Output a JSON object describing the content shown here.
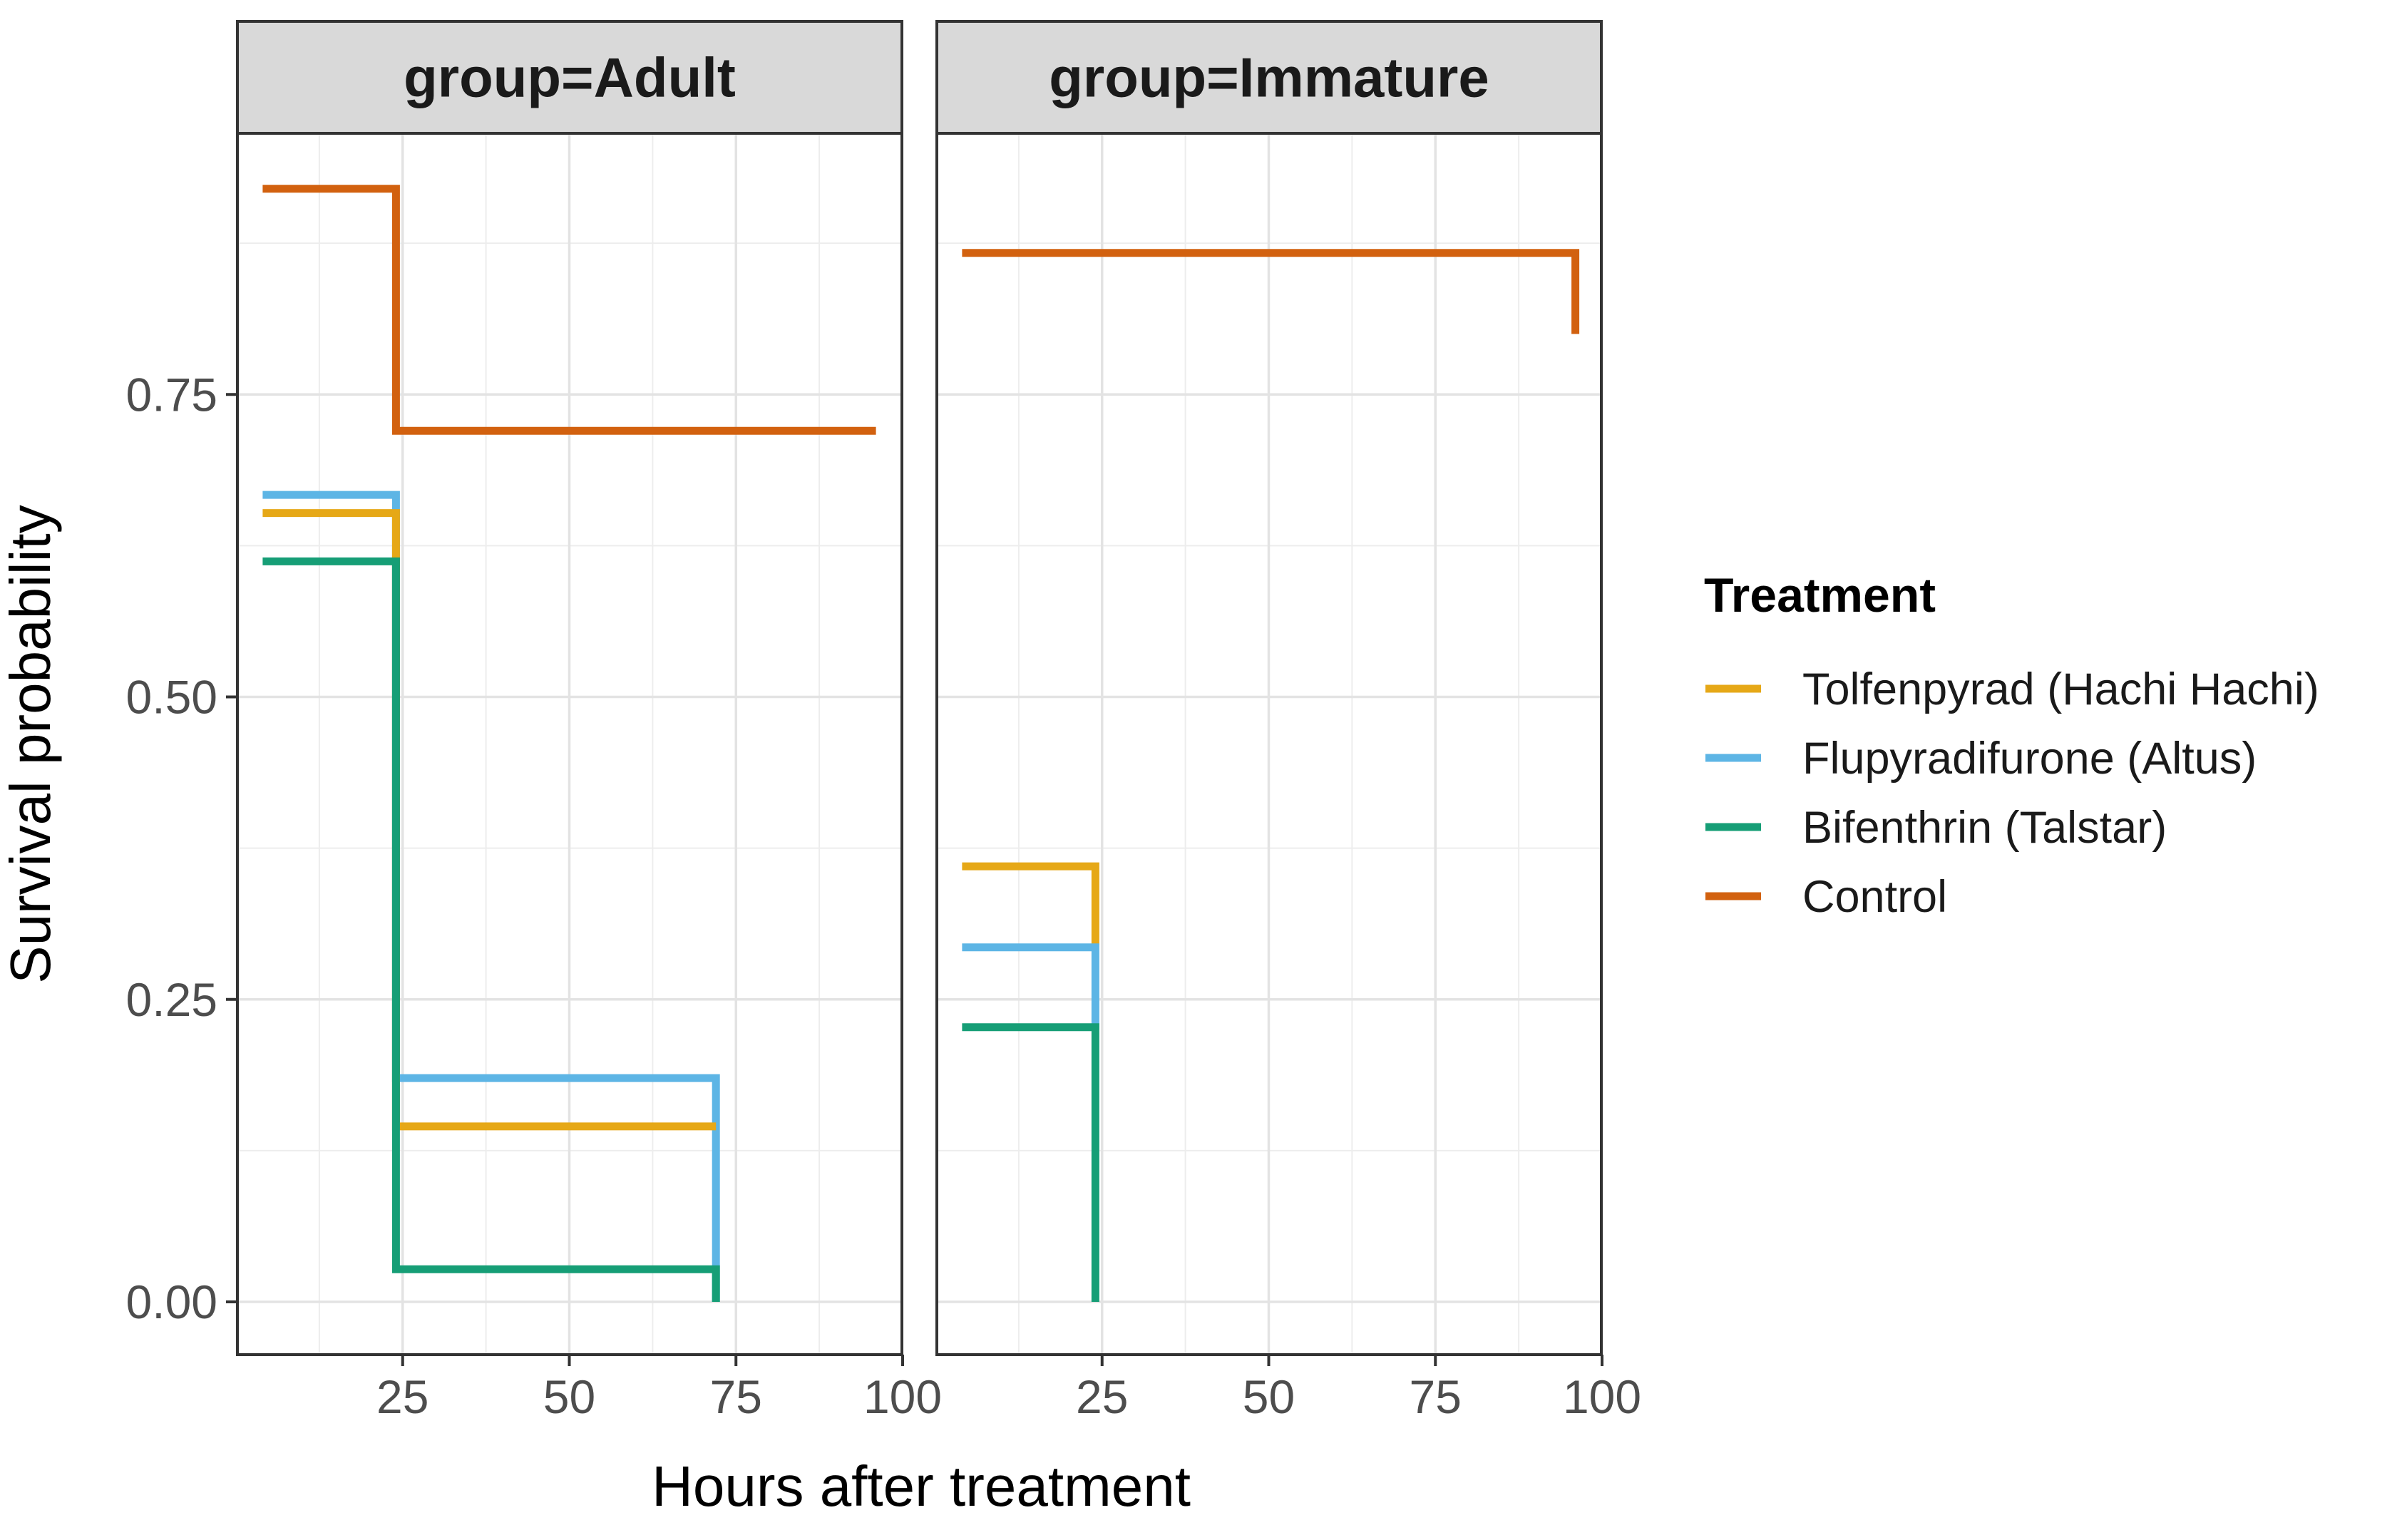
{
  "colors": {
    "Tolfenpyrad (Hachi Hachi)": "#E6A817",
    "Flupyradifurone (Altus)": "#5DB5E5",
    "Bifenthrin (Talstar)": "#169E76",
    "Control": "#D2610F"
  },
  "chart_data": {
    "type": "line",
    "step": true,
    "xlabel": "Hours after treatment",
    "ylabel": "Survival probability",
    "xlim": [
      0,
      100
    ],
    "ylim": [
      0,
      0.95
    ],
    "xticks": [
      "25",
      "50",
      "75",
      "100"
    ],
    "yticks": [
      "0.00",
      "0.25",
      "0.50",
      "0.75"
    ],
    "grid": true,
    "legend": {
      "title": "Treatment",
      "position": "right",
      "entries": [
        "Tolfenpyrad (Hachi Hachi)",
        "Flupyradifurone (Altus)",
        "Bifenthrin (Talstar)",
        "Control"
      ]
    },
    "facets": [
      {
        "strip": "group=Adult",
        "series": [
          {
            "name": "Control",
            "points": [
              [
                4,
                0.92
              ],
              [
                24,
                0.92
              ],
              [
                24,
                0.72
              ],
              [
                96,
                0.72
              ]
            ]
          },
          {
            "name": "Flupyradifurone (Altus)",
            "points": [
              [
                4,
                0.667
              ],
              [
                24,
                0.667
              ],
              [
                24,
                0.185
              ],
              [
                72,
                0.185
              ],
              [
                72,
                0.0
              ]
            ]
          },
          {
            "name": "Tolfenpyrad (Hachi Hachi)",
            "points": [
              [
                4,
                0.652
              ],
              [
                24,
                0.652
              ],
              [
                24,
                0.145
              ],
              [
                72,
                0.145
              ]
            ]
          },
          {
            "name": "Bifenthrin (Talstar)",
            "points": [
              [
                4,
                0.612
              ],
              [
                24,
                0.612
              ],
              [
                24,
                0.027
              ],
              [
                72,
                0.027
              ],
              [
                72,
                0.0
              ]
            ]
          }
        ]
      },
      {
        "strip": "group=Immature",
        "series": [
          {
            "name": "Control",
            "points": [
              [
                4,
                0.867
              ],
              [
                96,
                0.867
              ],
              [
                96,
                0.8
              ]
            ]
          },
          {
            "name": "Tolfenpyrad (Hachi Hachi)",
            "points": [
              [
                4,
                0.36
              ],
              [
                24,
                0.36
              ],
              [
                24,
                0.295
              ]
            ]
          },
          {
            "name": "Flupyradifurone (Altus)",
            "points": [
              [
                4,
                0.293
              ],
              [
                24,
                0.293
              ],
              [
                24,
                0.225
              ]
            ]
          },
          {
            "name": "Bifenthrin (Talstar)",
            "points": [
              [
                4,
                0.227
              ],
              [
                24,
                0.227
              ],
              [
                24,
                0.0
              ]
            ]
          }
        ]
      }
    ]
  }
}
